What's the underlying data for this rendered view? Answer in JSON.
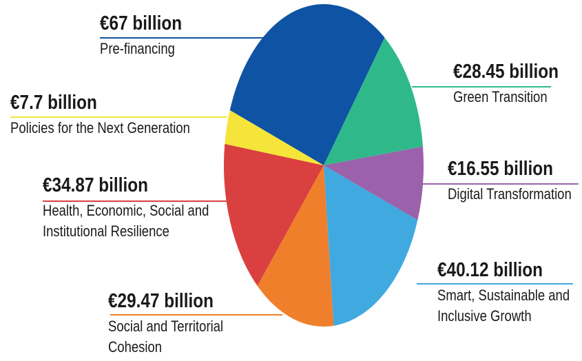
{
  "chart_data": {
    "type": "pie",
    "categories": [
      "Pre-financing",
      "Green Transition",
      "Digital Transformation",
      "Smart, Sustainable and Inclusive Growth",
      "Social and Territorial Cohesion",
      "Health, Economic, Social and Institutional Resilience",
      "Policies for the Next Generation"
    ],
    "values": [
      67,
      28.45,
      16.55,
      40.12,
      29.47,
      34.87,
      7.7
    ],
    "value_labels": [
      "€67 billion",
      "€28.45 billion",
      "€16.55 billion",
      "€40.12 billion",
      "€29.47 billion",
      "€34.87 billion",
      "€7.7 billion"
    ],
    "colors": [
      "#0f53a4",
      "#2fb98a",
      "#9b62ab",
      "#40a9e0",
      "#f07f2c",
      "#d9403f",
      "#f5e53a"
    ]
  }
}
